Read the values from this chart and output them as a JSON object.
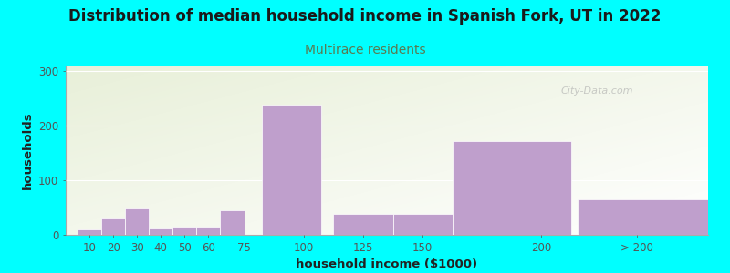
{
  "title": "Distribution of median household income in Spanish Fork, UT in 2022",
  "subtitle": "Multirace residents",
  "xlabel": "household income ($1000)",
  "ylabel": "households",
  "background_color": "#00FFFF",
  "bar_color": "#bf9fcc",
  "title_fontsize": 12,
  "subtitle_fontsize": 10,
  "subtitle_color": "#5a7a50",
  "label_fontsize": 9.5,
  "tick_fontsize": 8.5,
  "watermark": "City-Data.com",
  "bar_lefts": [
    5,
    15,
    25,
    35,
    45,
    55,
    65,
    82.5,
    112.5,
    137.5,
    162.5,
    215
  ],
  "bar_widths": [
    10,
    10,
    10,
    10,
    10,
    10,
    10,
    25,
    25,
    25,
    50,
    55
  ],
  "bar_heights": [
    10,
    30,
    48,
    12,
    13,
    14,
    45,
    238,
    38,
    38,
    172,
    65
  ],
  "ylim": [
    0,
    310
  ],
  "yticks": [
    0,
    100,
    200,
    300
  ],
  "xtick_positions": [
    10,
    20,
    30,
    40,
    50,
    60,
    75,
    100,
    125,
    150,
    200,
    240
  ],
  "xtick_labels": [
    "10",
    "20",
    "30",
    "40",
    "50",
    "60",
    "75",
    "100",
    "125",
    "150",
    "200",
    "> 200"
  ],
  "xlim": [
    0,
    270
  ]
}
